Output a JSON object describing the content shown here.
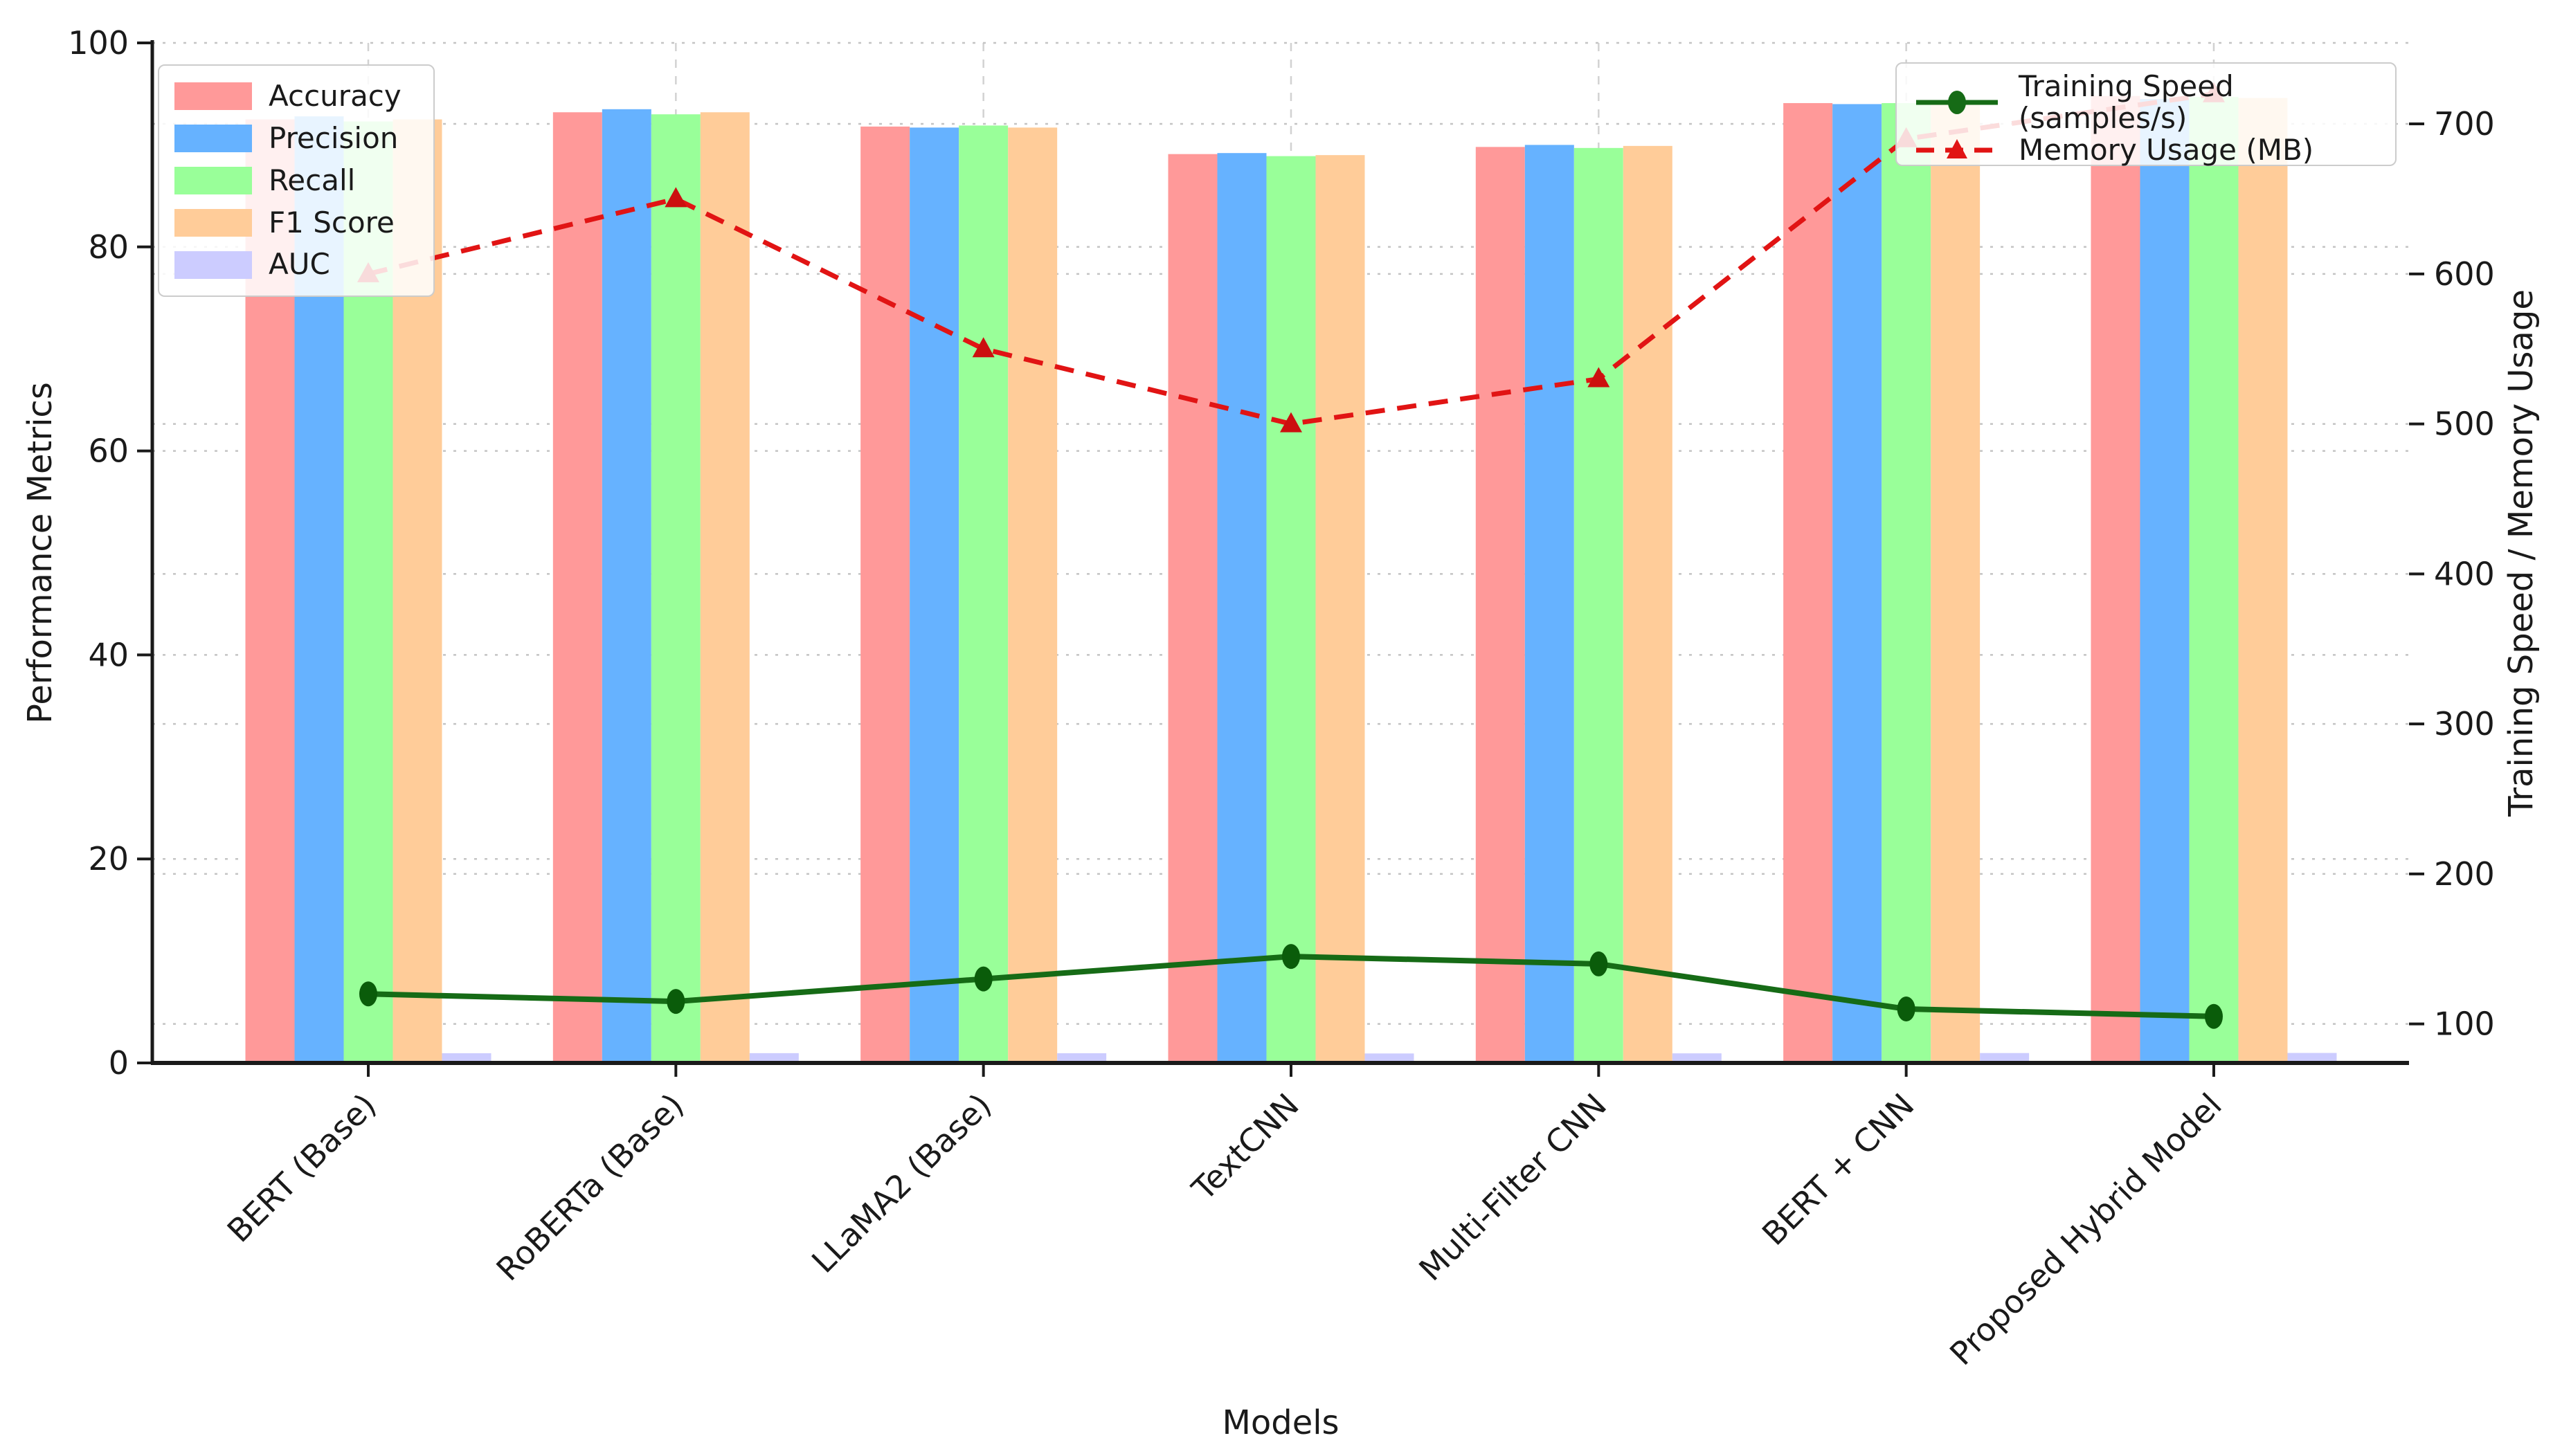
{
  "chart_data": {
    "type": "bar",
    "categories": [
      "BERT (Base)",
      "RoBERTa (Base)",
      "LLaMA2 (Base)",
      "TextCNN",
      "Multi-Filter CNN",
      "BERT + CNN",
      "Proposed Hybrid Model"
    ],
    "bar_series": [
      {
        "name": "Accuracy",
        "color": "#FF9999",
        "values": [
          92.5,
          93.2,
          91.8,
          89.1,
          89.8,
          94.1,
          94.8
        ]
      },
      {
        "name": "Precision",
        "color": "#66B2FF",
        "values": [
          92.8,
          93.5,
          91.7,
          89.2,
          90.0,
          94.0,
          94.5
        ]
      },
      {
        "name": "Recall",
        "color": "#99FF99",
        "values": [
          92.3,
          93.0,
          91.9,
          88.9,
          89.7,
          94.1,
          94.7
        ]
      },
      {
        "name": "F1 Score",
        "color": "#FFCC99",
        "values": [
          92.5,
          93.2,
          91.7,
          89.0,
          89.9,
          94.0,
          94.6
        ]
      },
      {
        "name": "AUC",
        "color": "#CCCCFF",
        "values": [
          0.95,
          0.96,
          0.95,
          0.93,
          0.94,
          0.97,
          0.98
        ]
      }
    ],
    "line_series": [
      {
        "name": "Training Speed (samples/s)",
        "color": "#166b16",
        "marker": "circle",
        "style": "solid",
        "axis": "right",
        "values": [
          120,
          115,
          130,
          145,
          140,
          110,
          105
        ]
      },
      {
        "name": "Memory Usage (MB)",
        "color": "#e11414",
        "marker": "triangle",
        "style": "dashed",
        "axis": "right",
        "values": [
          600,
          650,
          550,
          500,
          530,
          690,
          720
        ]
      }
    ],
    "xlabel": "Models",
    "ylabel_left": "Performance Metrics",
    "ylabel_right": "Training Speed / Memory Usage",
    "ylim_left": [
      0,
      100
    ],
    "yticks_left": [
      0,
      20,
      40,
      60,
      80,
      100
    ],
    "ylim_right": [
      74,
      754
    ],
    "yticks_right": [
      100,
      200,
      300,
      400,
      500,
      600,
      700
    ],
    "grid": true,
    "legend1_position": "upper left",
    "legend2_position": "upper right"
  },
  "colors": {
    "spine": "#1a1a1a",
    "tick_label": "#1a1a1a",
    "grid_h": "#c4c4c4",
    "grid_v": "#d2d2d2",
    "speed_marker": "#0a5c0a",
    "memory_marker": "#cc0f0f"
  }
}
